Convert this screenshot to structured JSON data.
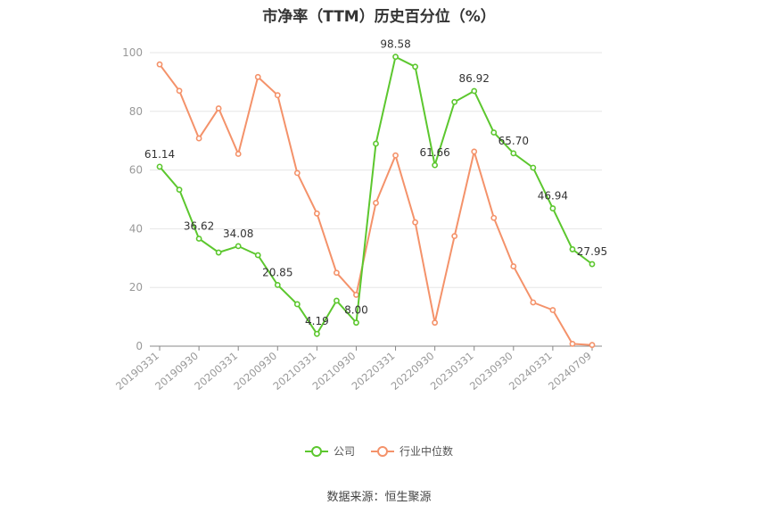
{
  "title": "市净率（TTM）历史百分位（%）",
  "source": "数据来源：恒生聚源",
  "colors": {
    "company": "#5cc72e",
    "industry": "#f4926a",
    "grid": "#e6e6e6",
    "axis": "#999999",
    "label": "#333333"
  },
  "chart_data": {
    "type": "line",
    "title": "市净率（TTM）历史百分位（%）",
    "ylim": [
      0,
      100
    ],
    "yticks": [
      0,
      20,
      40,
      60,
      80,
      100
    ],
    "grid": true,
    "legend_position": "bottom-center",
    "tick_labels": [
      "20190331",
      "20190930",
      "20200331",
      "20200930",
      "20210331",
      "20210930",
      "20220331",
      "20220930",
      "20230331",
      "20230930",
      "20240331",
      "20240709"
    ],
    "tick_indices": [
      0,
      2,
      4,
      6,
      8,
      10,
      12,
      14,
      16,
      18,
      20,
      22
    ],
    "series": [
      {
        "name": "公司",
        "values": [
          61.14,
          53.3,
          36.62,
          31.9,
          34.08,
          31.0,
          20.85,
          14.3,
          4.19,
          15.5,
          8.0,
          69.0,
          98.58,
          95.2,
          61.66,
          83.2,
          86.92,
          72.8,
          65.7,
          60.8,
          46.94,
          33.0,
          27.95
        ],
        "labels": [
          "61.14",
          null,
          "36.62",
          null,
          "34.08",
          null,
          "20.85",
          null,
          "4.19",
          null,
          "8.00",
          null,
          "98.58",
          null,
          "61.66",
          null,
          "86.92",
          null,
          "65.70",
          null,
          "46.94",
          null,
          "27.95"
        ]
      },
      {
        "name": "行业中位数",
        "values": [
          96.0,
          87.0,
          70.8,
          81.0,
          65.5,
          91.7,
          85.5,
          59.0,
          45.2,
          25.0,
          17.5,
          48.8,
          65.0,
          42.2,
          8.0,
          37.5,
          66.3,
          43.7,
          27.2,
          14.9,
          12.3,
          0.8,
          0.4
        ]
      }
    ]
  }
}
